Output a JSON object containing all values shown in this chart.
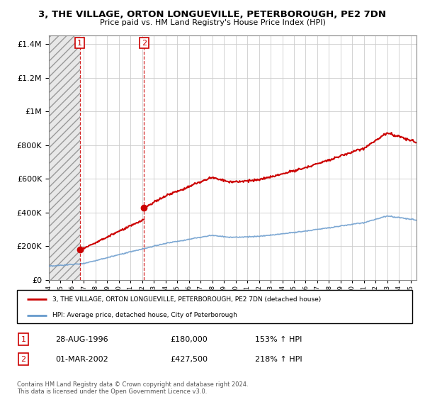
{
  "title": "3, THE VILLAGE, ORTON LONGUEVILLE, PETERBOROUGH, PE2 7DN",
  "subtitle": "Price paid vs. HM Land Registry's House Price Index (HPI)",
  "legend_line1": "3, THE VILLAGE, ORTON LONGUEVILLE, PETERBOROUGH, PE2 7DN (detached house)",
  "legend_line2": "HPI: Average price, detached house, City of Peterborough",
  "annotation1_label": "1",
  "annotation1_date": "28-AUG-1996",
  "annotation1_price": "£180,000",
  "annotation1_hpi": "153% ↑ HPI",
  "annotation2_label": "2",
  "annotation2_date": "01-MAR-2002",
  "annotation2_price": "£427,500",
  "annotation2_hpi": "218% ↑ HPI",
  "footnote": "Contains HM Land Registry data © Crown copyright and database right 2024.\nThis data is licensed under the Open Government Licence v3.0.",
  "purchase1_year": 1996.65,
  "purchase1_price": 180000,
  "purchase2_year": 2002.16,
  "purchase2_price": 427500,
  "red_color": "#cc0000",
  "blue_color": "#6699cc",
  "background_color": "#ffffff",
  "grid_color": "#cccccc",
  "ylim": [
    0,
    1450000
  ],
  "xlim": [
    1994,
    2025.5
  ]
}
